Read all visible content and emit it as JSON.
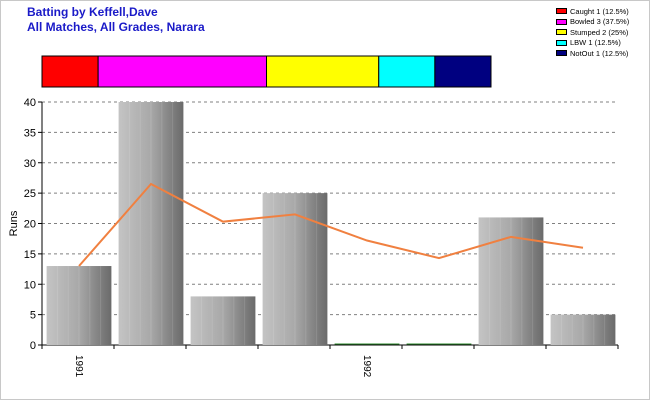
{
  "header": {
    "title_line1": "Batting by Keffell,Dave",
    "title_line2": "All Matches, All Grades, Narara"
  },
  "legend": [
    {
      "label": "Caught 1 (12.5%)",
      "color": "#ff0000"
    },
    {
      "label": "Bowled 3 (37.5%)",
      "color": "#ff00ff"
    },
    {
      "label": "Stumped 2 (25%)",
      "color": "#ffff00"
    },
    {
      "label": "LBW 1 (12.5%)",
      "color": "#00ffff"
    },
    {
      "label": "NotOut 1 (12.5%)",
      "color": "#000080"
    }
  ],
  "chart_data": {
    "type": "bar",
    "ylabel": "Runs",
    "ylim": [
      0,
      40
    ],
    "yticks": [
      0,
      5,
      10,
      15,
      20,
      25,
      30,
      35,
      40
    ],
    "x_tick_labels": [
      {
        "index": 0,
        "label": "1991"
      },
      {
        "index": 4,
        "label": "1992"
      }
    ],
    "series": [
      {
        "values": [
          13,
          40,
          8,
          25,
          0,
          0,
          21,
          5
        ],
        "color": "#a0a0a0"
      }
    ],
    "line_series": {
      "values": [
        13,
        26.5,
        20.3,
        21.5,
        17.2,
        14.3,
        17.8,
        16
      ],
      "color": "#f08040"
    },
    "dismissal_bar": {
      "segments": [
        {
          "name": "Caught",
          "count": 1,
          "color": "#ff0000"
        },
        {
          "name": "Bowled",
          "count": 3,
          "color": "#ff00ff"
        },
        {
          "name": "Stumped",
          "count": 2,
          "color": "#ffff00"
        },
        {
          "name": "LBW",
          "count": 1,
          "color": "#00ffff"
        },
        {
          "name": "NotOut",
          "count": 1,
          "color": "#000080"
        }
      ]
    },
    "grid": true,
    "legend_position": "top-right"
  }
}
